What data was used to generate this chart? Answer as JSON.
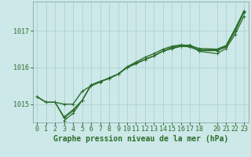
{
  "background_color": "#cce8e8",
  "plot_bg_color": "#cce8e8",
  "grid_color": "#aacece",
  "line_color": "#2d6e2d",
  "title": "Graphe pression niveau de la mer (hPa)",
  "title_fontsize": 7,
  "tick_fontsize": 6,
  "xlim": [
    -0.5,
    23.5
  ],
  "ylim": [
    1014.5,
    1017.8
  ],
  "yticks": [
    1015,
    1016,
    1017
  ],
  "xticks": [
    0,
    1,
    2,
    3,
    4,
    5,
    6,
    7,
    8,
    9,
    10,
    11,
    12,
    13,
    14,
    15,
    16,
    17,
    18,
    20,
    21,
    22,
    23
  ],
  "series": [
    {
      "x": [
        0,
        1,
        2,
        3,
        4,
        5,
        6,
        7,
        8,
        9,
        10,
        11,
        12,
        13,
        14,
        15,
        16,
        17,
        18,
        20,
        21,
        22,
        23
      ],
      "y": [
        1015.2,
        1015.05,
        1015.05,
        1015.0,
        1015.0,
        1015.35,
        1015.5,
        1015.6,
        1015.72,
        1015.82,
        1016.02,
        1016.15,
        1016.28,
        1016.38,
        1016.5,
        1016.58,
        1016.62,
        1016.6,
        1016.52,
        1016.5,
        1016.6,
        1017.05,
        1017.55
      ]
    },
    {
      "x": [
        0,
        1,
        2,
        3,
        4,
        5,
        6,
        7,
        8,
        9,
        10,
        11,
        12,
        13,
        14,
        15,
        16,
        17,
        18,
        20,
        21,
        22,
        23
      ],
      "y": [
        1015.2,
        1015.05,
        1015.05,
        1014.65,
        1014.85,
        1015.1,
        1015.52,
        1015.62,
        1015.7,
        1015.82,
        1016.0,
        1016.1,
        1016.22,
        1016.32,
        1016.45,
        1016.55,
        1016.6,
        1016.58,
        1016.48,
        1016.48,
        1016.58,
        1017.0,
        1017.52
      ]
    },
    {
      "x": [
        0,
        1,
        2,
        3,
        4,
        5,
        6,
        7,
        8,
        9,
        10,
        11,
        12,
        13,
        14,
        15,
        16,
        17,
        18,
        20,
        21,
        22,
        23
      ],
      "y": [
        1015.2,
        1015.05,
        1015.05,
        1014.62,
        1014.82,
        1015.1,
        1015.52,
        1015.62,
        1015.7,
        1015.82,
        1016.0,
        1016.12,
        1016.22,
        1016.32,
        1016.45,
        1016.52,
        1016.58,
        1016.56,
        1016.46,
        1016.46,
        1016.56,
        1016.98,
        1017.5
      ]
    },
    {
      "x": [
        3,
        4,
        5,
        6,
        7,
        8,
        9,
        10,
        11,
        12,
        13,
        14,
        15,
        16,
        17,
        18,
        20,
        21,
        22,
        23
      ],
      "y": [
        1014.55,
        1014.75,
        1015.1,
        1015.52,
        1015.62,
        1015.7,
        1015.82,
        1016.0,
        1016.12,
        1016.22,
        1016.32,
        1016.45,
        1016.52,
        1016.58,
        1016.62,
        1016.44,
        1016.38,
        1016.52,
        1016.9,
        1017.4
      ]
    }
  ]
}
